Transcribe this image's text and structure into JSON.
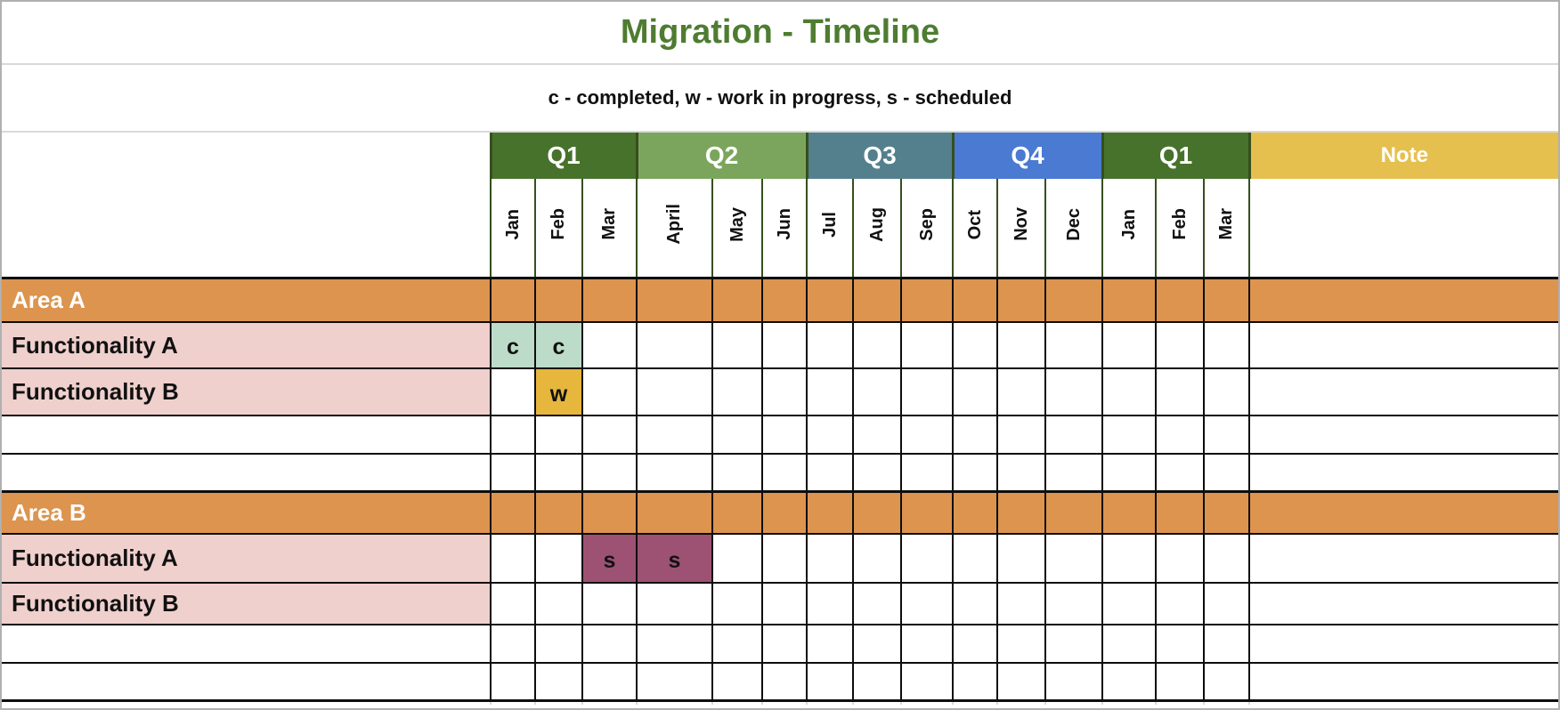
{
  "title": "Migration - Timeline",
  "legend": "c - completed, w - work in progress, s - scheduled",
  "header": {
    "quarters": [
      {
        "label": "Q1",
        "color": "#47722c",
        "months_spanned": 3
      },
      {
        "label": "Q2",
        "color": "#7ba55c",
        "months_spanned": 3
      },
      {
        "label": "Q3",
        "color": "#54808d",
        "months_spanned": 3
      },
      {
        "label": "Q4",
        "color": "#4a7ad2",
        "months_spanned": 3
      },
      {
        "label": "Q1",
        "color": "#47722c",
        "months_spanned": 3
      }
    ],
    "note_label": "Note",
    "note_color": "#e6c04f",
    "months": [
      "Jan",
      "Feb",
      "Mar",
      "April",
      "May",
      "Jun",
      "Jul",
      "Aug",
      "Sep",
      "Oct",
      "Nov",
      "Dec",
      "Jan",
      "Feb",
      "Mar"
    ]
  },
  "statuses": {
    "c": {
      "letter": "c",
      "meaning": "completed",
      "color": "#bcdbc9"
    },
    "w": {
      "letter": "w",
      "meaning": "work in progress",
      "color": "#e6b63d"
    },
    "s": {
      "letter": "s",
      "meaning": "scheduled",
      "color": "#9d5273"
    }
  },
  "colors": {
    "title_text": "#4e7c31",
    "area_row": "#dc944e",
    "func_label": "#efd0cd",
    "grid_line": "#0d0d0d",
    "header_line": "#364f1e",
    "separator_gray": "#d9d9d9"
  },
  "rows": [
    {
      "type": "area",
      "label": "Area A",
      "cells": []
    },
    {
      "type": "func",
      "label": "Functionality A",
      "cells": [
        {
          "month": 0,
          "status": "c"
        },
        {
          "month": 1,
          "status": "c"
        }
      ]
    },
    {
      "type": "func",
      "label": "Functionality B",
      "cells": [
        {
          "month": 1,
          "status": "w"
        }
      ]
    },
    {
      "type": "empty",
      "label": "",
      "cells": []
    },
    {
      "type": "empty",
      "label": "",
      "cells": []
    },
    {
      "type": "area",
      "label": "Area B",
      "cells": []
    },
    {
      "type": "func",
      "label": "Functionality A",
      "cells": [
        {
          "month": 2,
          "status": "s"
        },
        {
          "month": 3,
          "status": "s"
        }
      ]
    },
    {
      "type": "func",
      "label": "Functionality B",
      "cells": []
    },
    {
      "type": "empty",
      "label": "",
      "cells": []
    },
    {
      "type": "empty",
      "label": "",
      "cells": []
    }
  ]
}
